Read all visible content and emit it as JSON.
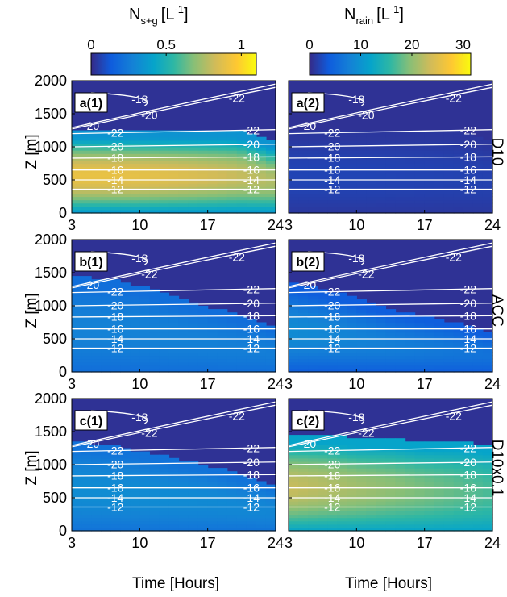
{
  "colorbars": [
    {
      "title_main": "N",
      "title_sub": "s+g",
      "title_unit": "[L",
      "title_exp": "-1",
      "title_close": "]",
      "ticks": [
        "0",
        "0.5",
        "1"
      ],
      "range": [
        0,
        1.1
      ]
    },
    {
      "title_main": "N",
      "title_sub": "rain",
      "title_unit": "[L",
      "title_exp": "-1",
      "title_close": "]",
      "ticks": [
        "0",
        "10",
        "20",
        "30"
      ],
      "range": [
        0,
        31.5
      ]
    }
  ],
  "axes": {
    "ylabel": "Z [m]",
    "xlabel": "Time [Hours]",
    "xticks": [
      "3",
      "10",
      "17",
      "24"
    ],
    "yticks": [
      "0",
      "500",
      "1000",
      "1500",
      "2000"
    ]
  },
  "rows": [
    {
      "label": "D10",
      "panels": [
        "a(1)",
        "a(2)"
      ]
    },
    {
      "label": "ACC",
      "panels": [
        "b(1)",
        "b(2)"
      ]
    },
    {
      "label": "D10x0.1",
      "panels": [
        "c(1)",
        "c(2)"
      ]
    }
  ],
  "chart_data": [
    {
      "panel": "a(1)",
      "type": "heatmap",
      "variable": "N_s+g",
      "xlim": [
        3,
        24
      ],
      "ylim": [
        0,
        2000
      ],
      "field": {
        "base_top": [
          1250,
          1250,
          1250,
          1250,
          1250,
          1250,
          1100
        ],
        "peak": 0.9,
        "low": 0.35
      },
      "contours": [
        "-12",
        "-14",
        "-16",
        "-18",
        "-20",
        "-22",
        "-20",
        "-18",
        "-22",
        "-20"
      ]
    },
    {
      "panel": "a(2)",
      "type": "heatmap",
      "variable": "N_rain",
      "xlim": [
        3,
        24
      ],
      "ylim": [
        0,
        2000
      ],
      "field": {
        "base_top": [
          1250,
          1250,
          1250,
          1250,
          1250,
          1250,
          1100
        ],
        "peak": 2,
        "low": 1
      },
      "contours": [
        "-12",
        "-14",
        "-16",
        "-18",
        "-20",
        "-22",
        "-20",
        "-18",
        "-22",
        "-20"
      ]
    },
    {
      "panel": "b(1)",
      "type": "heatmap",
      "variable": "N_s+g",
      "xlim": [
        3,
        24
      ],
      "ylim": [
        0,
        2000
      ],
      "field": {
        "base_top": [
          1450,
          1400,
          1300,
          1150,
          1000,
          850,
          700
        ],
        "peak": 0.28,
        "low": 0.2
      },
      "contours": [
        "-12",
        "-14",
        "-16",
        "-18",
        "-20",
        "-22",
        "-20",
        "-18",
        "-18",
        "-20",
        "-22"
      ]
    },
    {
      "panel": "b(2)",
      "type": "heatmap",
      "variable": "N_rain",
      "xlim": [
        3,
        24
      ],
      "ylim": [
        0,
        2000
      ],
      "field": {
        "base_top": [
          1350,
          1250,
          1100,
          950,
          850,
          750,
          600
        ],
        "peak": 9,
        "low": 4
      },
      "contours": [
        "-12",
        "-14",
        "-16",
        "-18",
        "-20",
        "-22",
        "-20",
        "-18",
        "-18",
        "-20",
        "-22"
      ]
    },
    {
      "panel": "c(1)",
      "type": "heatmap",
      "variable": "N_s+g",
      "xlim": [
        3,
        24
      ],
      "ylim": [
        0,
        2000
      ],
      "field": {
        "base_top": [
          1350,
          1300,
          1200,
          1100,
          1000,
          850,
          700
        ],
        "peak": 0.32,
        "low": 0.22
      },
      "contours": [
        "-12",
        "-14",
        "-16",
        "-18",
        "-20",
        "-22",
        "-20",
        "-18",
        "-18",
        "-20",
        "-22"
      ]
    },
    {
      "panel": "c(2)",
      "type": "heatmap",
      "variable": "N_rain",
      "xlim": [
        3,
        24
      ],
      "ylim": [
        0,
        2000
      ],
      "field": {
        "base_top": [
          1450,
          1450,
          1400,
          1400,
          1350,
          1350,
          1300
        ],
        "peak": 23,
        "low": 12
      },
      "contours": [
        "-12",
        "-14",
        "-16",
        "-18",
        "-20",
        "-22",
        "-20",
        "-18",
        "-18",
        "-20",
        "-22"
      ]
    }
  ]
}
